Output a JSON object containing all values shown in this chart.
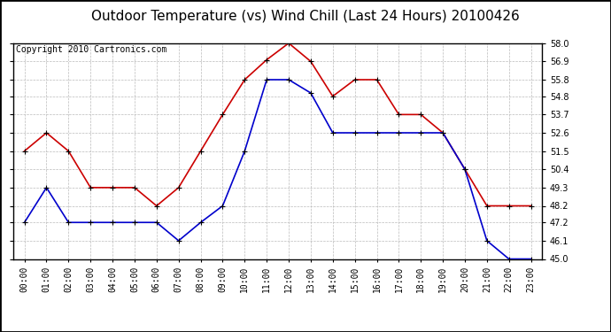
{
  "title": "Outdoor Temperature (vs) Wind Chill (Last 24 Hours) 20100426",
  "copyright": "Copyright 2010 Cartronics.com",
  "hours": [
    "00:00",
    "01:00",
    "02:00",
    "03:00",
    "04:00",
    "05:00",
    "06:00",
    "07:00",
    "08:00",
    "09:00",
    "10:00",
    "11:00",
    "12:00",
    "13:00",
    "14:00",
    "15:00",
    "16:00",
    "17:00",
    "18:00",
    "19:00",
    "20:00",
    "21:00",
    "22:00",
    "23:00"
  ],
  "temp": [
    51.5,
    52.6,
    51.5,
    49.3,
    49.3,
    49.3,
    48.2,
    49.3,
    51.5,
    53.7,
    55.8,
    57.0,
    58.0,
    56.9,
    54.8,
    55.8,
    55.8,
    53.7,
    53.7,
    52.6,
    50.4,
    48.2,
    48.2,
    48.2
  ],
  "windchill": [
    47.2,
    49.3,
    47.2,
    47.2,
    47.2,
    47.2,
    47.2,
    46.1,
    47.2,
    48.2,
    51.5,
    55.8,
    55.8,
    55.0,
    52.6,
    52.6,
    52.6,
    52.6,
    52.6,
    52.6,
    50.4,
    46.1,
    45.0,
    45.0
  ],
  "temp_color": "#cc0000",
  "windchill_color": "#0000cc",
  "bg_color": "#ffffff",
  "plot_bg_color": "#ffffff",
  "grid_color": "#bbbbbb",
  "ymin": 45.0,
  "ymax": 58.0,
  "yticks": [
    45.0,
    46.1,
    47.2,
    48.2,
    49.3,
    50.4,
    51.5,
    52.6,
    53.7,
    54.8,
    55.8,
    56.9,
    58.0
  ],
  "title_fontsize": 11,
  "copyright_fontsize": 7,
  "xtick_fontsize": 7,
  "ytick_fontsize": 7
}
